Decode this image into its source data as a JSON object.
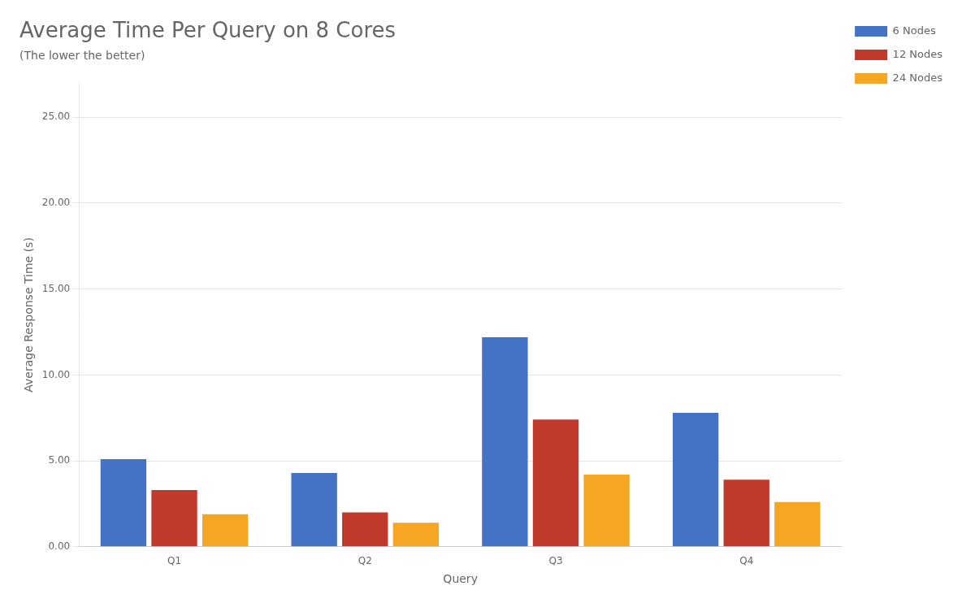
{
  "chart_data": {
    "type": "bar",
    "title": "Average Time Per Query on 8 Cores",
    "subtitle": "(The lower the better)",
    "xlabel": "Query",
    "ylabel": "Average Response Time (s)",
    "categories": [
      "Q1",
      "Q2",
      "Q3",
      "Q4"
    ],
    "series": [
      {
        "name": "6 Nodes",
        "color": "#4472C4",
        "values": [
          5.1,
          4.3,
          12.2,
          7.8
        ]
      },
      {
        "name": "12 Nodes",
        "color": "#C0392B",
        "values": [
          3.3,
          2.0,
          7.4,
          3.9
        ]
      },
      {
        "name": "24 Nodes",
        "color": "#F5A623",
        "values": [
          1.9,
          1.4,
          4.2,
          2.6
        ]
      }
    ],
    "ylim": [
      0,
      27
    ],
    "yticks": [
      {
        "value": 0,
        "label": "0.00"
      },
      {
        "value": 5,
        "label": "5.00"
      },
      {
        "value": 10,
        "label": "10.00"
      },
      {
        "value": 15,
        "label": "15.00"
      },
      {
        "value": 20,
        "label": "20.00"
      },
      {
        "value": 25,
        "label": "25.00"
      }
    ],
    "grid": true,
    "legend": "right"
  }
}
